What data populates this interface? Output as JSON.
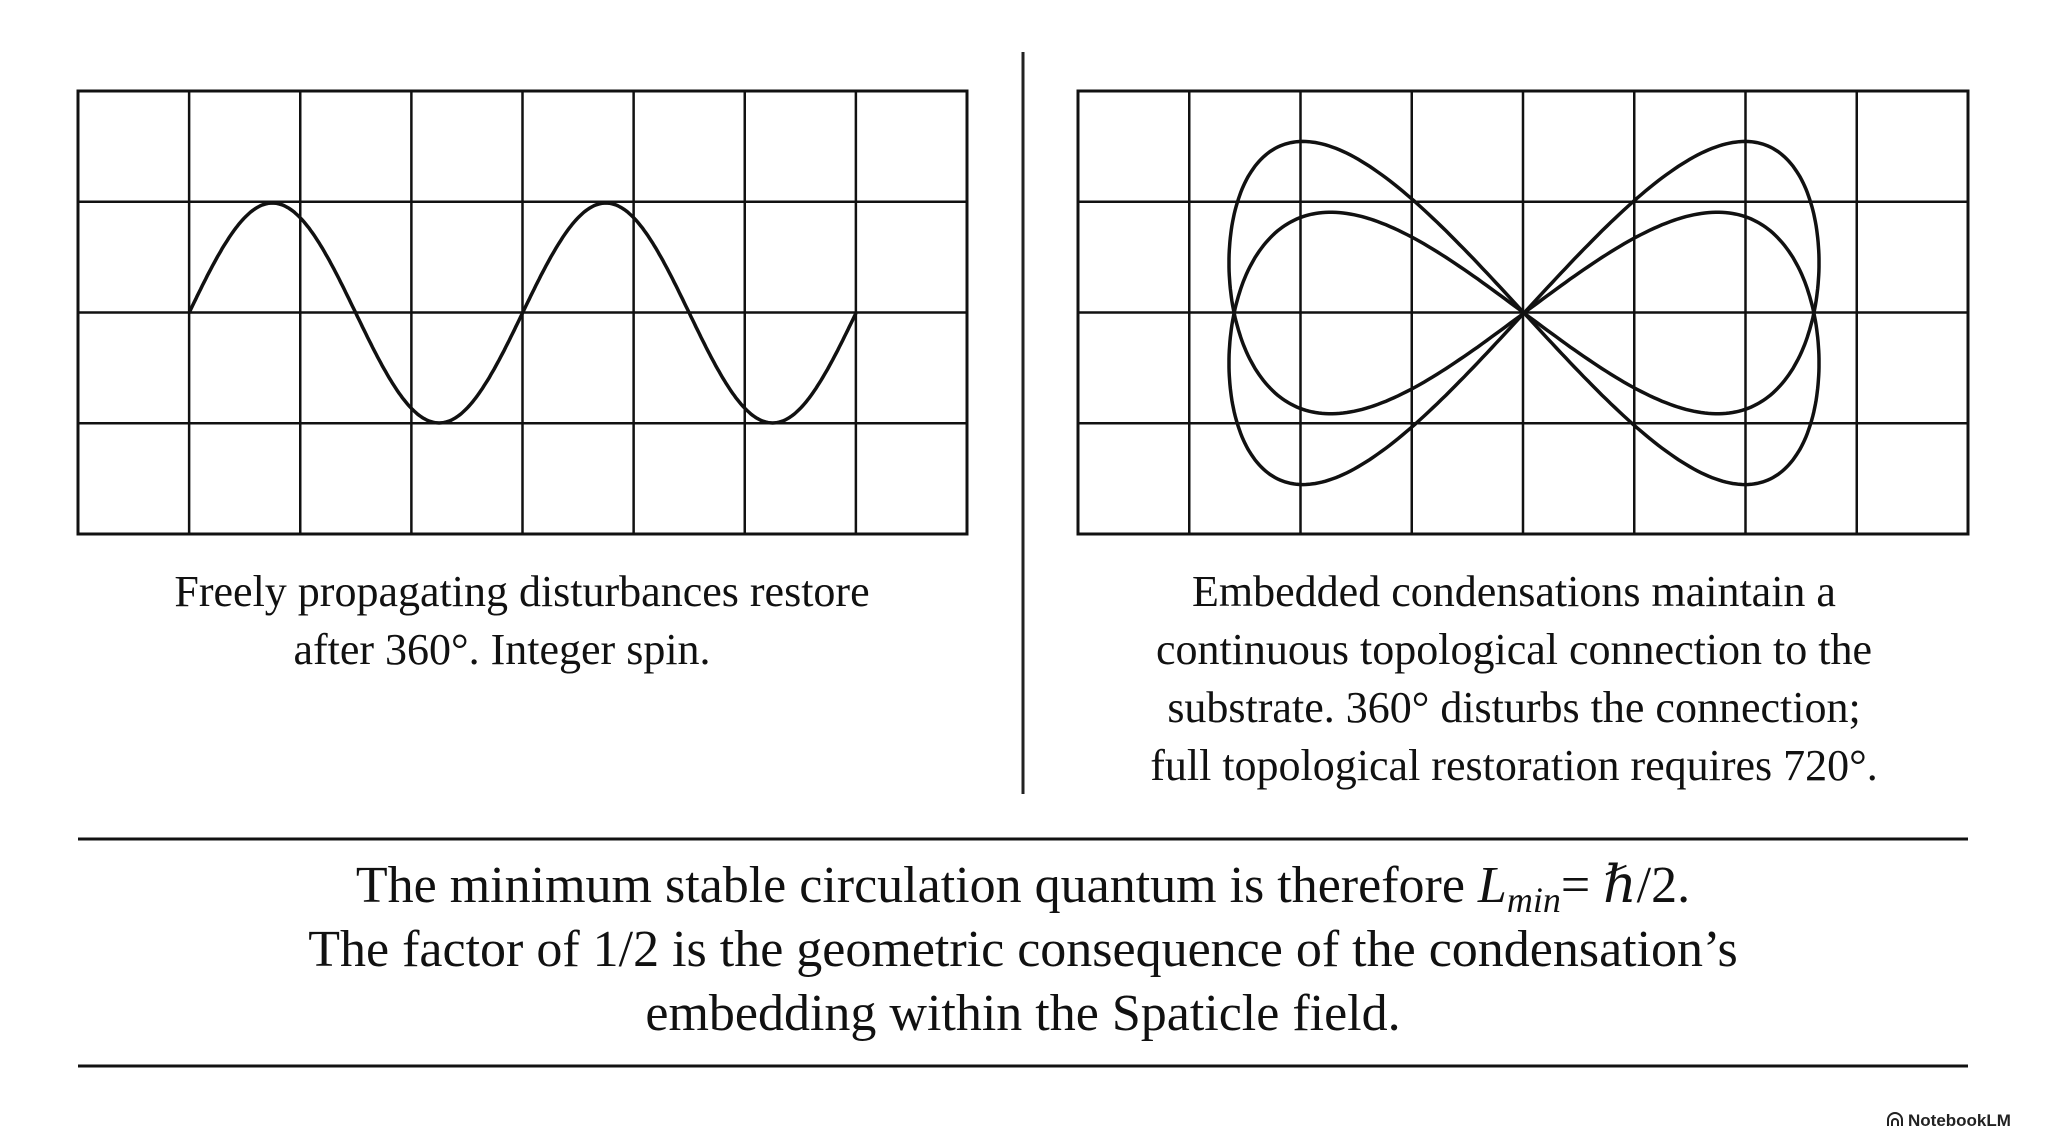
{
  "left_panel": {
    "caption": [
      "Freely propagating disturbances restore",
      "after 360°. Integer spin."
    ]
  },
  "right_panel": {
    "caption": [
      "Embedded condensations maintain a",
      "continuous topological connection to the",
      "substrate. 360° disturbs the connection;",
      "full topological restoration requires 720°."
    ]
  },
  "conclusion": {
    "line1": "The minimum stable circulation quantum is therefore",
    "formula": {
      "symbol": "L",
      "subscript": "min",
      "rest": "= ℏ/2."
    },
    "line2": "The factor of 1/2 is the geometric consequence of the condensation’s",
    "line3": "embedding within the Spaticle field."
  },
  "footer": {
    "brand": "NotebookLM"
  }
}
